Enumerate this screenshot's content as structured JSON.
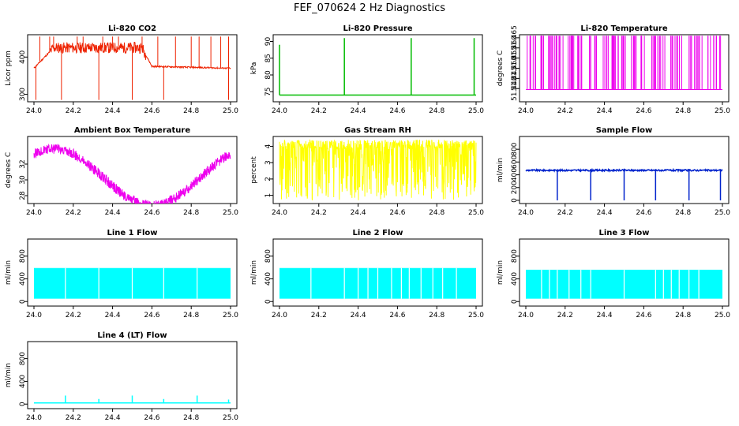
{
  "figure": {
    "title": "FEF_070624  2 Hz Diagnostics"
  },
  "chart_data": [
    {
      "type": "line",
      "title": "Li-820 CO2",
      "ylabel": "Licor ppm",
      "color": "#ee2200",
      "xlim": [
        24.0,
        25.0
      ],
      "ylim": [
        280,
        460
      ],
      "xticks": [
        "24.0",
        "24.2",
        "24.4",
        "24.6",
        "24.8",
        "25.0"
      ],
      "yticks": [
        {
          "v": 300,
          "label": "300"
        },
        {
          "v": 400,
          "label": "400"
        }
      ],
      "pattern": "co2",
      "baseline": [
        370,
        425,
        425,
        375,
        370
      ],
      "spikes_x": [
        24.03,
        24.08,
        24.1,
        24.22,
        24.25,
        24.35,
        24.4,
        24.43,
        24.55,
        24.63,
        24.72,
        24.8,
        24.84,
        24.9,
        24.95,
        24.99
      ],
      "spike_top": 455,
      "dips_x": [
        24.01,
        24.14,
        24.33,
        24.5,
        24.66,
        24.99
      ],
      "dip_bottom": 285
    },
    {
      "type": "line",
      "title": "Li-820 Pressure",
      "ylabel": "kPa",
      "color": "#00bb00",
      "xlim": [
        24.0,
        25.0
      ],
      "ylim": [
        72,
        92
      ],
      "xticks": [
        "24.0",
        "24.2",
        "24.4",
        "24.6",
        "24.8",
        "25.0"
      ],
      "yticks": [
        {
          "v": 75,
          "label": "75"
        },
        {
          "v": 80,
          "label": "80"
        },
        {
          "v": 85,
          "label": "85"
        },
        {
          "v": 90,
          "label": "90"
        }
      ],
      "pattern": "spikes",
      "base": 74,
      "spikes": [
        {
          "x": 24.0,
          "y": 89
        },
        {
          "x": 24.33,
          "y": 91
        },
        {
          "x": 24.67,
          "y": 91
        },
        {
          "x": 24.99,
          "y": 91
        }
      ],
      "dense": false
    },
    {
      "type": "line",
      "title": "Li-820 Temperature",
      "ylabel": "degrees C",
      "color": "#ee00ee",
      "xlim": [
        24.0,
        25.0
      ],
      "ylim": [
        51.4335,
        51.4665
      ],
      "xticks": [
        "24.0",
        "24.2",
        "24.4",
        "24.6",
        "24.8",
        "25.0"
      ],
      "yticks": [
        {
          "v": 51.44,
          "label": "51.440"
        },
        {
          "v": 51.445,
          "label": "51.445"
        },
        {
          "v": 51.45,
          "label": "51.450"
        },
        {
          "v": 51.455,
          "label": "51.455"
        },
        {
          "v": 51.46,
          "label": "51.460"
        },
        {
          "v": 51.465,
          "label": "51.465"
        }
      ],
      "pattern": "binary",
      "low": 51.4395,
      "high": 51.466,
      "seed": 7,
      "n": 120
    },
    {
      "type": "line",
      "title": "Ambient Box Temperature",
      "ylabel": "degrees C",
      "color": "#ee00ee",
      "xlim": [
        24.0,
        25.0
      ],
      "ylim": [
        27,
        35.5
      ],
      "xticks": [
        "24.0",
        "24.2",
        "24.4",
        "24.6",
        "24.8",
        "25.0"
      ],
      "yticks": [
        {
          "v": 28,
          "label": "28"
        },
        {
          "v": 30,
          "label": "30"
        },
        {
          "v": 32,
          "label": "32"
        }
      ],
      "pattern": "sine",
      "mean": 31,
      "amp": 3.6,
      "phaseMax": 24.1,
      "period": 1.0,
      "noise": 1.3
    },
    {
      "type": "line",
      "title": "Gas Stream RH",
      "ylabel": "percent",
      "color": "#ffff00",
      "xlim": [
        24.0,
        25.0
      ],
      "ylim": [
        0.5,
        4.6
      ],
      "xticks": [
        "24.0",
        "24.2",
        "24.4",
        "24.6",
        "24.8",
        "25.0"
      ],
      "yticks": [
        {
          "v": 1,
          "label": "1"
        },
        {
          "v": 2,
          "label": "2"
        },
        {
          "v": 3,
          "label": "3"
        },
        {
          "v": 4,
          "label": "4"
        }
      ],
      "pattern": "noiseband",
      "lo": 0.7,
      "hi": 4.4,
      "seed": 3,
      "n": 700
    },
    {
      "type": "line",
      "title": "Sample Flow",
      "ylabel": "ml/min",
      "color": "#0022cc",
      "xlim": [
        24.0,
        25.0
      ],
      "ylim": [
        -50,
        1000
      ],
      "xticks": [
        "24.0",
        "24.2",
        "24.4",
        "24.6",
        "24.8",
        "25.0"
      ],
      "yticks": [
        {
          "v": 0,
          "label": "0"
        },
        {
          "v": 200,
          "label": "200"
        },
        {
          "v": 400,
          "label": "400"
        },
        {
          "v": 600,
          "label": "600"
        },
        {
          "v": 800,
          "label": "800"
        }
      ],
      "pattern": "flowdips",
      "base": 470,
      "dips": [
        24.16,
        24.33,
        24.5,
        24.66,
        24.83,
        24.99
      ],
      "dip_to": 0
    },
    {
      "type": "line",
      "title": "Line 1 Flow",
      "ylabel": "ml/min",
      "color": "#00ffff",
      "xlim": [
        24.0,
        25.0
      ],
      "ylim": [
        -80,
        1100
      ],
      "xticks": [
        "24.0",
        "24.2",
        "24.4",
        "24.6",
        "24.8",
        "25.0"
      ],
      "yticks": [
        {
          "v": 0,
          "label": "0"
        },
        {
          "v": 400,
          "label": "400"
        },
        {
          "v": 800,
          "label": "800"
        }
      ],
      "pattern": "band",
      "lo": 50,
      "hi": 590,
      "gaps": [
        24.16,
        24.33,
        24.5,
        24.66,
        24.83
      ]
    },
    {
      "type": "line",
      "title": "Line 2 Flow",
      "ylabel": "ml/min",
      "color": "#00ffff",
      "xlim": [
        24.0,
        25.0
      ],
      "ylim": [
        -80,
        1100
      ],
      "xticks": [
        "24.0",
        "24.2",
        "24.4",
        "24.6",
        "24.8",
        "25.0"
      ],
      "yticks": [
        {
          "v": 0,
          "label": "0"
        },
        {
          "v": 400,
          "label": "400"
        },
        {
          "v": 800,
          "label": "800"
        }
      ],
      "pattern": "band",
      "lo": 50,
      "hi": 590,
      "gaps": [
        24.16,
        24.33,
        24.4,
        24.45,
        24.5,
        24.57,
        24.62,
        24.66,
        24.72,
        24.78,
        24.83,
        24.9
      ]
    },
    {
      "type": "line",
      "title": "Line 3 Flow",
      "ylabel": "ml/min",
      "color": "#00ffff",
      "xlim": [
        24.0,
        25.0
      ],
      "ylim": [
        -80,
        1100
      ],
      "xticks": [
        "24.0",
        "24.2",
        "24.4",
        "24.6",
        "24.8",
        "25.0"
      ],
      "yticks": [
        {
          "v": 0,
          "label": "0"
        },
        {
          "v": 400,
          "label": "400"
        },
        {
          "v": 800,
          "label": "800"
        }
      ],
      "pattern": "band",
      "lo": 50,
      "hi": 560,
      "gaps": [
        24.08,
        24.12,
        24.16,
        24.22,
        24.28,
        24.33,
        24.5,
        24.66,
        24.7,
        24.74,
        24.78,
        24.83,
        24.88
      ]
    },
    {
      "type": "line",
      "title": "Line 4 (LT) Flow",
      "ylabel": "ml/min",
      "color": "#00ffff",
      "xlim": [
        24.0,
        25.0
      ],
      "ylim": [
        -80,
        1100
      ],
      "xticks": [
        "24.0",
        "24.2",
        "24.4",
        "24.6",
        "24.8",
        "25.0"
      ],
      "yticks": [
        {
          "v": 0,
          "label": "0"
        },
        {
          "v": 400,
          "label": "400"
        },
        {
          "v": 800,
          "label": "800"
        }
      ],
      "pattern": "spikes",
      "base": 20,
      "spikes": [
        {
          "x": 24.16,
          "y": 150
        },
        {
          "x": 24.33,
          "y": 90
        },
        {
          "x": 24.5,
          "y": 150
        },
        {
          "x": 24.66,
          "y": 90
        },
        {
          "x": 24.83,
          "y": 150
        },
        {
          "x": 24.99,
          "y": 80
        }
      ],
      "dense": false
    }
  ]
}
